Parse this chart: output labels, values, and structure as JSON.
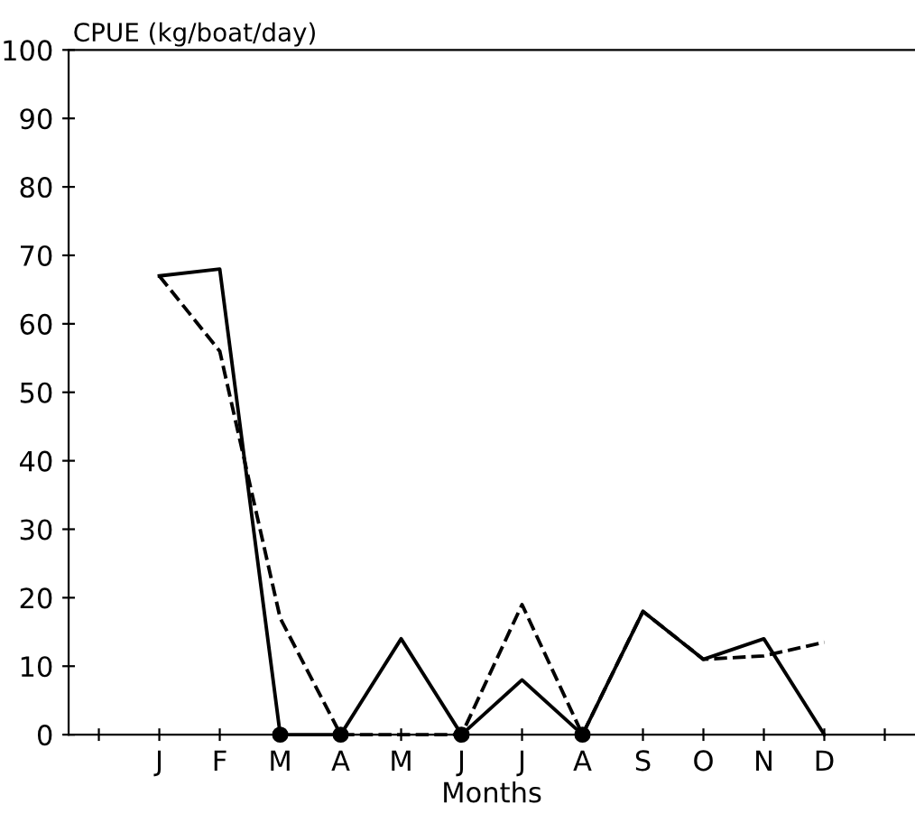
{
  "chart_data": {
    "type": "line",
    "ylabel": "CPUE (kg/boat/day)",
    "xlabel": "Months",
    "categories": [
      null,
      "J",
      "F",
      "M",
      "A",
      "M",
      "J",
      "J",
      "A",
      "S",
      "O",
      "N",
      "D",
      null
    ],
    "series": [
      {
        "color": "#000000",
        "line_style": "solid",
        "values": [
          null,
          67,
          68,
          0,
          0,
          14,
          0,
          8,
          0,
          18,
          11,
          14,
          0,
          null
        ]
      },
      {
        "color": "#000000",
        "line_style": "dashed",
        "values": [
          null,
          67,
          56,
          17,
          0,
          0,
          0,
          19,
          0,
          18,
          11,
          11.5,
          13.5,
          null
        ]
      },
      {
        "type": "scatter",
        "marker": "circle",
        "color": "#000000",
        "values": [
          null,
          null,
          null,
          0,
          0,
          null,
          0,
          null,
          0,
          null,
          null,
          null,
          null,
          null
        ]
      }
    ],
    "ylim": [
      0,
      100
    ],
    "yticks": [
      0,
      10,
      20,
      30,
      40,
      50,
      60,
      70,
      80,
      90,
      100
    ],
    "grid": false,
    "legend": false
  }
}
